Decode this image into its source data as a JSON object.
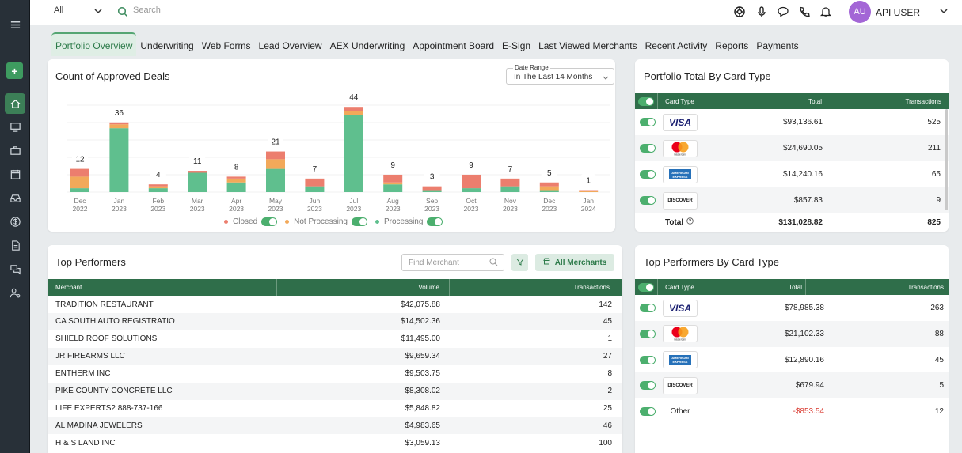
{
  "topbar": {
    "scope_select": "All",
    "search_placeholder": "Search",
    "user_initials": "AU",
    "user_name": "API USER"
  },
  "tabs": [
    {
      "label": "Portfolio Overview",
      "active": true
    },
    {
      "label": "Underwriting"
    },
    {
      "label": "Web Forms"
    },
    {
      "label": "Lead Overview"
    },
    {
      "label": "AEX Underwriting"
    },
    {
      "label": "Appointment Board"
    },
    {
      "label": "E-Sign"
    },
    {
      "label": "Last Viewed Merchants"
    },
    {
      "label": "Recent Activity"
    },
    {
      "label": "Reports"
    },
    {
      "label": "Payments"
    }
  ],
  "deals_card": {
    "title": "Count of Approved Deals",
    "date_range_label": "Date Range",
    "date_range_value": "In The Last 14 Months"
  },
  "chart_data": {
    "type": "bar",
    "stacked": true,
    "title": "Count of Approved Deals",
    "categories": [
      "Dec 2022",
      "Jan 2023",
      "Feb 2023",
      "Mar 2023",
      "Apr 2023",
      "May 2023",
      "Jun 2023",
      "Jul 2023",
      "Aug 2023",
      "Sep 2023",
      "Oct 2023",
      "Nov 2023",
      "Dec 2023",
      "Jan 2024"
    ],
    "category_top": [
      "Dec",
      "Jan",
      "Feb",
      "Mar",
      "Apr",
      "May",
      "Jun",
      "Jul",
      "Aug",
      "Sep",
      "Oct",
      "Nov",
      "Dec",
      "Jan"
    ],
    "category_bottom": [
      "2022",
      "2023",
      "2023",
      "2023",
      "2023",
      "2023",
      "2023",
      "2023",
      "2023",
      "2023",
      "2023",
      "2023",
      "2023",
      "2024"
    ],
    "totals": [
      12,
      36,
      4,
      11,
      8,
      21,
      7,
      44,
      9,
      3,
      9,
      7,
      5,
      1
    ],
    "series": [
      {
        "name": "Processing",
        "color": "#5fbf8e",
        "values": [
          2,
          33,
          2,
          10,
          5,
          12,
          3,
          40,
          4,
          1,
          2,
          3,
          1,
          0
        ]
      },
      {
        "name": "Not Processing",
        "color": "#f2a95a",
        "values": [
          6,
          2,
          1,
          0,
          2,
          5,
          0,
          2,
          1,
          0,
          0,
          0,
          2,
          0.5
        ]
      },
      {
        "name": "Closed",
        "color": "#ec7e6e",
        "values": [
          4,
          1,
          1,
          1,
          1,
          4,
          4,
          2,
          4,
          2,
          7,
          4,
          2,
          0.5
        ]
      }
    ],
    "legend": [
      {
        "name": "Closed",
        "color": "#ec7e6e"
      },
      {
        "name": "Not Processing",
        "color": "#f2a95a"
      },
      {
        "name": "Processing",
        "color": "#5fbf8e"
      }
    ],
    "legend_position": "bottom",
    "grid": true
  },
  "portfolio_card": {
    "title": "Portfolio Total By Card Type",
    "columns": [
      "Card Type",
      "Total",
      "Transactions"
    ],
    "rows": [
      {
        "card": "visa",
        "total": "$93,136.61",
        "transactions": "525"
      },
      {
        "card": "mastercard",
        "total": "$24,690.05",
        "transactions": "211"
      },
      {
        "card": "amex",
        "total": "$14,240.16",
        "transactions": "65"
      },
      {
        "card": "discover",
        "total": "$857.83",
        "transactions": "9"
      }
    ],
    "total_label": "Total",
    "total_amount": "$131,028.82",
    "total_transactions": "825"
  },
  "performers_card": {
    "title": "Top Performers",
    "find_placeholder": "Find Merchant",
    "all_merchants_label": "All Merchants",
    "columns": [
      "Merchant",
      "Volume",
      "Transactions"
    ],
    "rows": [
      {
        "merchant": "TRADITION RESTAURANT",
        "volume": "$42,075.88",
        "transactions": "142"
      },
      {
        "merchant": "CA SOUTH AUTO REGISTRATIO",
        "volume": "$14,502.36",
        "transactions": "45"
      },
      {
        "merchant": "SHIELD ROOF SOLUTIONS",
        "volume": "$11,495.00",
        "transactions": "1"
      },
      {
        "merchant": "JR FIREARMS LLC",
        "volume": "$9,659.34",
        "transactions": "27"
      },
      {
        "merchant": "ENTHERM INC",
        "volume": "$9,503.75",
        "transactions": "8"
      },
      {
        "merchant": "PIKE COUNTY CONCRETE LLC",
        "volume": "$8,308.02",
        "transactions": "2"
      },
      {
        "merchant": "LIFE EXPERTS2 888-737-166",
        "volume": "$5,848.82",
        "transactions": "25"
      },
      {
        "merchant": "AL MADINA JEWELERS",
        "volume": "$4,983.65",
        "transactions": "46"
      },
      {
        "merchant": "H & S LAND INC",
        "volume": "$3,059.13",
        "transactions": "100"
      }
    ]
  },
  "performers_card_type": {
    "title": "Top Performers By Card Type",
    "columns": [
      "Card Type",
      "Total",
      "Transactions"
    ],
    "rows": [
      {
        "card": "visa",
        "total": "$78,985.38",
        "transactions": "263",
        "negative": false
      },
      {
        "card": "mastercard",
        "total": "$21,102.33",
        "transactions": "88",
        "negative": false
      },
      {
        "card": "amex",
        "total": "$12,890.16",
        "transactions": "45",
        "negative": false
      },
      {
        "card": "discover",
        "total": "$679.94",
        "transactions": "5",
        "negative": false
      },
      {
        "card": "Other",
        "total": "-$853.54",
        "transactions": "12",
        "negative": true
      }
    ]
  },
  "card_logos": {
    "visa": "VISA",
    "amex_line1": "AMERICAN",
    "amex_line2": "EXPRESS",
    "discover": "DISCOVER",
    "mastercard": "mastercard"
  },
  "colors": {
    "accent": "#2f6e4a",
    "toggle": "#4caf6e",
    "negative": "#d9392f",
    "avatar": "#a366d6",
    "sidebar": "#283038"
  }
}
